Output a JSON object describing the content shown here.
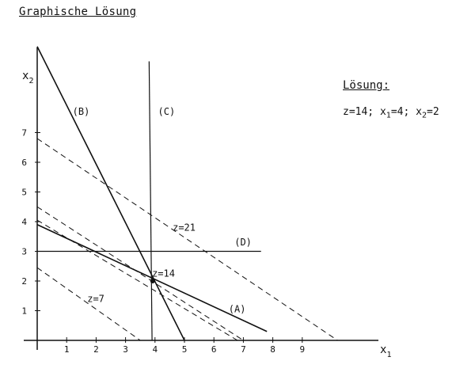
{
  "title": "Graphische Lösung",
  "solution": {
    "heading": "Lösung:",
    "z_text": "z=14;",
    "x1_text": "x",
    "x1_sub": "1",
    "x1_val": "=4;",
    "x2_text": "x",
    "x2_sub": "2",
    "x2_val": "=2"
  },
  "chart_data": {
    "type": "line",
    "xlabel": "x",
    "xlabel_sub": "1",
    "ylabel": "x",
    "ylabel_sub": "2",
    "xlim": [
      0,
      12
    ],
    "ylim": [
      0,
      10
    ],
    "x_ticks": [
      "1",
      "2",
      "3",
      "4",
      "5",
      "6",
      "7",
      "8",
      "9"
    ],
    "y_ticks": [
      "1",
      "2",
      "3",
      "4",
      "5",
      "6",
      "7"
    ],
    "constraints": [
      {
        "name": "(A)",
        "points": [
          [
            0,
            3.9
          ],
          [
            7.8,
            0.3
          ]
        ],
        "label_at": [
          6.5,
          0.95
        ]
      },
      {
        "name": "(B)",
        "points": [
          [
            0,
            9.9
          ],
          [
            5,
            0
          ]
        ],
        "label_at": [
          1.2,
          7.6
        ]
      },
      {
        "name": "(C)",
        "points": [
          [
            3.8,
            9.4
          ],
          [
            3.9,
            0
          ]
        ],
        "label_at": [
          4.1,
          7.6
        ]
      },
      {
        "name": "(D)",
        "points": [
          [
            0,
            3
          ],
          [
            7.6,
            3
          ]
        ],
        "label_at": [
          6.7,
          3.2
        ]
      }
    ],
    "objective_lines": [
      {
        "name": "z=7",
        "points": [
          [
            0,
            2.45
          ],
          [
            3.5,
            0
          ]
        ],
        "label_at": [
          1.7,
          1.3
        ]
      },
      {
        "name": "",
        "points": [
          [
            0,
            4.5
          ],
          [
            7,
            0
          ]
        ],
        "label_at": null
      },
      {
        "name": "z=14",
        "points": [
          [
            0,
            4.05
          ],
          [
            6.8,
            0
          ]
        ],
        "label_at": [
          3.9,
          2.15
        ]
      },
      {
        "name": "z=21",
        "points": [
          [
            0,
            6.8
          ],
          [
            10.2,
            0
          ]
        ],
        "label_at": [
          4.6,
          3.7
        ]
      }
    ],
    "optimum": {
      "x": 4,
      "y": 2
    }
  }
}
